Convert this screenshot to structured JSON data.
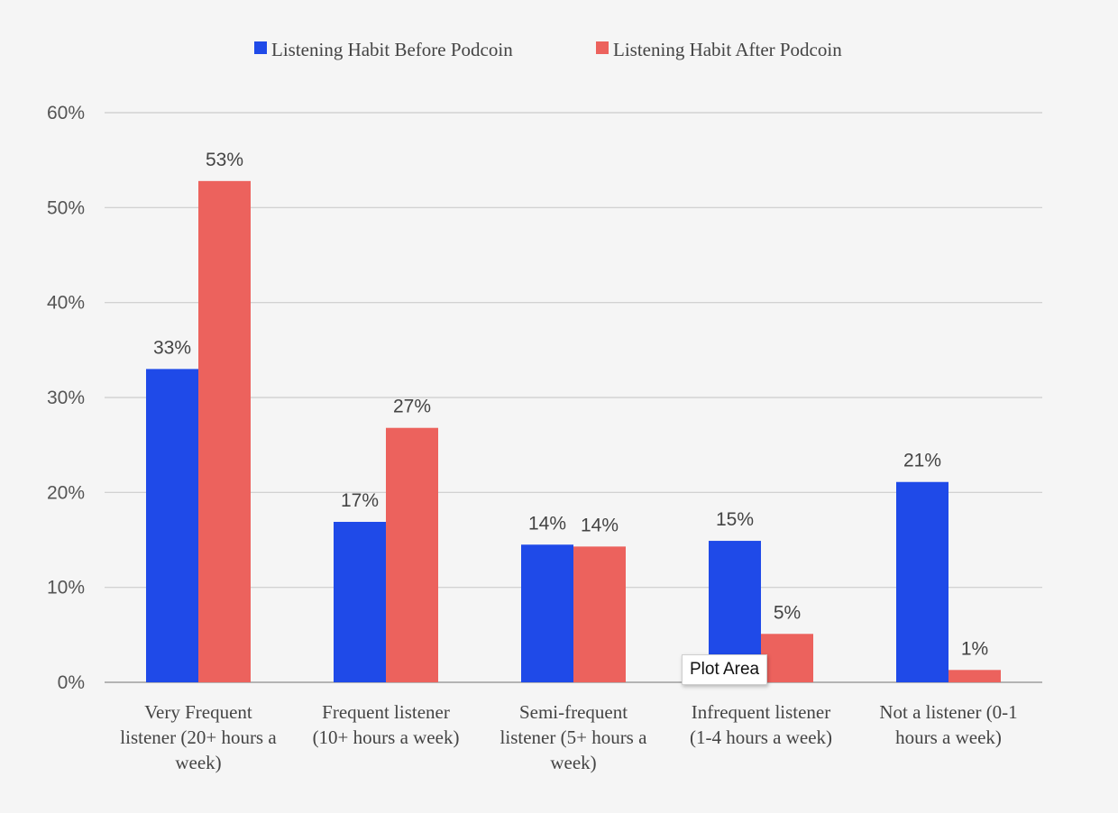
{
  "chart_data": {
    "type": "bar",
    "categories": [
      [
        "Very Frequent",
        "listener (20+ hours a",
        "week)"
      ],
      [
        "Frequent listener",
        "(10+ hours a week)"
      ],
      [
        "Semi-frequent",
        "listener (5+ hours a",
        "week)"
      ],
      [
        "Infrequent listener",
        "(1-4 hours a week)"
      ],
      [
        "Not a listener (0-1",
        "hours a week)"
      ]
    ],
    "series": [
      {
        "name": "Listening Habit Before Podcoin",
        "color": "#1f4ae8",
        "values": [
          33,
          16.9,
          14.5,
          14.9,
          21.1
        ],
        "labels": [
          "33%",
          "17%",
          "14%",
          "15%",
          "21%"
        ]
      },
      {
        "name": "Listening Habit After Podcoin",
        "color": "#ec625d",
        "values": [
          52.8,
          26.8,
          14.3,
          5.1,
          1.3
        ],
        "labels": [
          "53%",
          "27%",
          "14%",
          "5%",
          "1%"
        ]
      }
    ],
    "yticks": [
      "0%",
      "10%",
      "20%",
      "30%",
      "40%",
      "50%",
      "60%"
    ],
    "ylim": [
      0,
      60
    ],
    "grid": true,
    "legend_position": "top"
  },
  "tooltip": {
    "text": "Plot Area"
  }
}
